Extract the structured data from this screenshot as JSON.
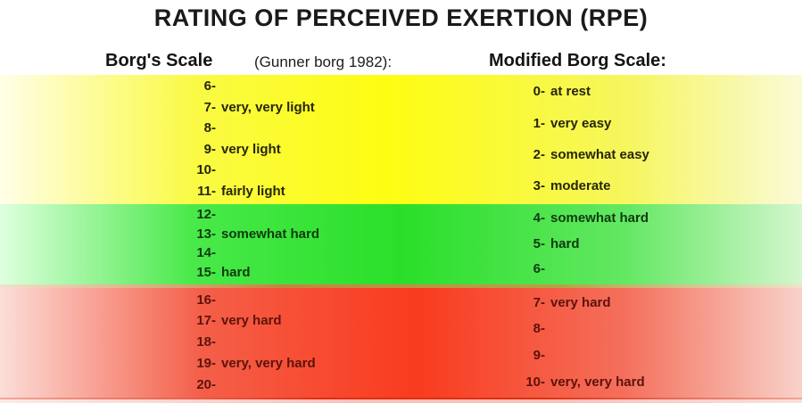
{
  "title": "RATING OF PERCEIVED EXERTION (RPE)",
  "headers": {
    "borg": "Borg's Scale",
    "borg_note": "(Gunner borg 1982):",
    "modified": "Modified Borg Scale:"
  },
  "colors": {
    "yellow_band_center": "#FDFD12",
    "yellow_band_edge": "#FFFEE8",
    "green_band_center": "#2ADF2A",
    "green_band_edge": "#DFFFDF",
    "red_band_center": "#F93B1E",
    "red_band_edge": "#FBDED8",
    "title_text": "#1A1A1A"
  },
  "chart_data": {
    "type": "table",
    "title": "RATING OF PERCEIVED EXERTION (RPE)",
    "columns": [
      "Borg's Scale (Gunner borg 1982)",
      "Modified Borg Scale"
    ],
    "bands": [
      {
        "color": "yellow",
        "color_hex": "#FDFD12",
        "borg": [
          {
            "num": "6",
            "label": ""
          },
          {
            "num": "7",
            "label": "very, very light"
          },
          {
            "num": "8",
            "label": ""
          },
          {
            "num": "9",
            "label": "very light"
          },
          {
            "num": "10",
            "label": ""
          },
          {
            "num": "11",
            "label": "fairly light"
          }
        ],
        "modified": [
          {
            "num": "0",
            "label": "at rest"
          },
          {
            "num": "1",
            "label": "very easy"
          },
          {
            "num": "2",
            "label": "somewhat easy"
          },
          {
            "num": "3",
            "label": "moderate"
          }
        ]
      },
      {
        "color": "green",
        "color_hex": "#2ADF2A",
        "borg": [
          {
            "num": "12",
            "label": ""
          },
          {
            "num": "13",
            "label": "somewhat hard"
          },
          {
            "num": "14",
            "label": ""
          },
          {
            "num": "15",
            "label": "hard"
          }
        ],
        "modified": [
          {
            "num": "4",
            "label": "somewhat hard"
          },
          {
            "num": "5",
            "label": "hard"
          },
          {
            "num": "6",
            "label": ""
          }
        ]
      },
      {
        "color": "red",
        "color_hex": "#F93B1E",
        "borg": [
          {
            "num": "16",
            "label": ""
          },
          {
            "num": "17",
            "label": "very hard"
          },
          {
            "num": "18",
            "label": ""
          },
          {
            "num": "19",
            "label": "very, very hard"
          },
          {
            "num": "20",
            "label": ""
          }
        ],
        "modified": [
          {
            "num": "7",
            "label": "very hard"
          },
          {
            "num": "8",
            "label": ""
          },
          {
            "num": "9",
            "label": ""
          },
          {
            "num": "10",
            "label": "very, very hard"
          }
        ]
      }
    ]
  }
}
